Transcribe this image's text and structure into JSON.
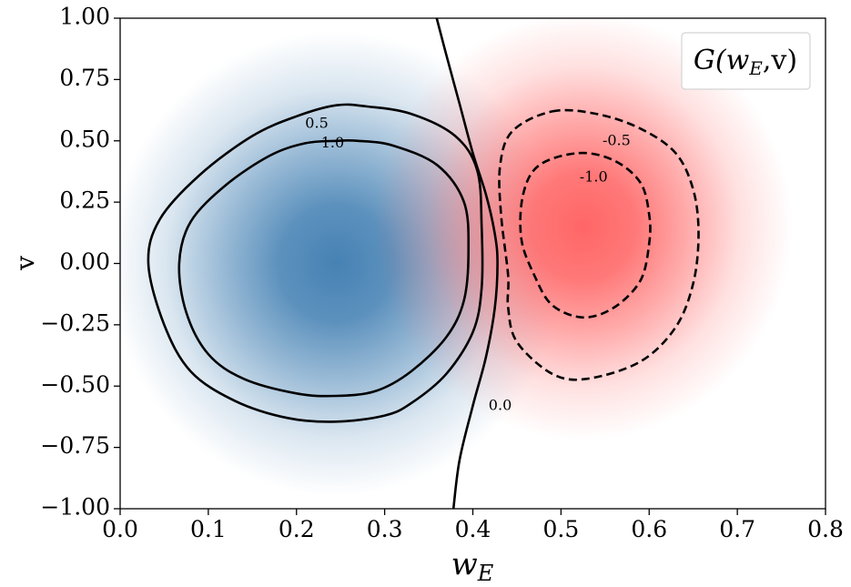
{
  "chart_data": {
    "type": "heatmap",
    "title": "",
    "xlabel": "w",
    "xlabel_sub": "E",
    "ylabel": "v",
    "xlim": [
      0.0,
      0.8
    ],
    "ylim": [
      -1.0,
      1.0
    ],
    "x_ticks": [
      "0.0",
      "0.1",
      "0.2",
      "0.3",
      "0.4",
      "0.5",
      "0.6",
      "0.7",
      "0.8"
    ],
    "y_ticks": [
      "1.00",
      "0.75",
      "0.50",
      "0.25",
      "0.00",
      "−0.25",
      "−0.50",
      "−0.75",
      "−1.00"
    ],
    "legend": {
      "text_main": "G(w",
      "text_sub": "E",
      "text_tail": ",v)",
      "placement": "top-right"
    },
    "colormap": {
      "positive": "#4682b4",
      "negative": "#ff6666",
      "zero": "#ffffff"
    },
    "blobs": [
      {
        "sign": 1,
        "center": [
          0.245,
          0.0
        ],
        "peak": 1.4
      },
      {
        "sign": -1,
        "center": [
          0.525,
          0.15
        ],
        "peak": -1.4
      }
    ],
    "contours": [
      {
        "level": 0.5,
        "label": "0.5",
        "style": "solid",
        "label_at": [
          0.223,
          0.57
        ],
        "points": [
          [
            0.032,
            0.0
          ],
          [
            0.045,
            0.18
          ],
          [
            0.09,
            0.36
          ],
          [
            0.15,
            0.52
          ],
          [
            0.2,
            0.6
          ],
          [
            0.245,
            0.645
          ],
          [
            0.28,
            0.64
          ],
          [
            0.33,
            0.61
          ],
          [
            0.38,
            0.52
          ],
          [
            0.405,
            0.38
          ],
          [
            0.41,
            0.15
          ],
          [
            0.41,
            -0.1
          ],
          [
            0.4,
            -0.28
          ],
          [
            0.37,
            -0.45
          ],
          [
            0.33,
            -0.57
          ],
          [
            0.3,
            -0.62
          ],
          [
            0.245,
            -0.645
          ],
          [
            0.19,
            -0.63
          ],
          [
            0.13,
            -0.56
          ],
          [
            0.08,
            -0.44
          ],
          [
            0.05,
            -0.25
          ],
          [
            0.032,
            0.0
          ]
        ]
      },
      {
        "level": 1.0,
        "label": "1.0",
        "style": "solid",
        "label_at": [
          0.241,
          0.49
        ],
        "points": [
          [
            0.067,
            0.0
          ],
          [
            0.08,
            0.17
          ],
          [
            0.12,
            0.32
          ],
          [
            0.17,
            0.44
          ],
          [
            0.21,
            0.49
          ],
          [
            0.245,
            0.5
          ],
          [
            0.27,
            0.5
          ],
          [
            0.31,
            0.48
          ],
          [
            0.36,
            0.4
          ],
          [
            0.39,
            0.25
          ],
          [
            0.395,
            0.05
          ],
          [
            0.39,
            -0.15
          ],
          [
            0.37,
            -0.3
          ],
          [
            0.33,
            -0.44
          ],
          [
            0.29,
            -0.52
          ],
          [
            0.245,
            -0.54
          ],
          [
            0.2,
            -0.53
          ],
          [
            0.14,
            -0.47
          ],
          [
            0.1,
            -0.37
          ],
          [
            0.075,
            -0.2
          ],
          [
            0.067,
            0.0
          ]
        ]
      },
      {
        "level": 0.0,
        "label": "0.0",
        "style": "solid",
        "label_at": [
          0.431,
          -0.58
        ],
        "points": [
          [
            0.359,
            1.0
          ],
          [
            0.37,
            0.85
          ],
          [
            0.385,
            0.65
          ],
          [
            0.4,
            0.45
          ],
          [
            0.415,
            0.28
          ],
          [
            0.425,
            0.12
          ],
          [
            0.428,
            0.0
          ],
          [
            0.425,
            -0.18
          ],
          [
            0.415,
            -0.38
          ],
          [
            0.4,
            -0.58
          ],
          [
            0.385,
            -0.8
          ],
          [
            0.378,
            -1.0
          ]
        ]
      },
      {
        "level": -0.5,
        "label": "-0.5",
        "style": "dashed",
        "label_at": [
          0.563,
          0.5
        ],
        "points": [
          [
            0.49,
            0.62
          ],
          [
            0.54,
            0.61
          ],
          [
            0.59,
            0.55
          ],
          [
            0.63,
            0.45
          ],
          [
            0.65,
            0.3
          ],
          [
            0.656,
            0.12
          ],
          [
            0.65,
            -0.08
          ],
          [
            0.63,
            -0.26
          ],
          [
            0.59,
            -0.4
          ],
          [
            0.53,
            -0.47
          ],
          [
            0.49,
            -0.45
          ],
          [
            0.45,
            -0.32
          ],
          [
            0.44,
            -0.18
          ],
          [
            0.44,
            -0.05
          ],
          [
            0.432,
            0.2
          ],
          [
            0.431,
            0.4
          ],
          [
            0.445,
            0.54
          ],
          [
            0.49,
            0.62
          ]
        ]
      },
      {
        "level": -1.0,
        "label": "-1.0",
        "style": "dashed",
        "label_at": [
          0.537,
          0.35
        ],
        "points": [
          [
            0.52,
            0.45
          ],
          [
            0.56,
            0.42
          ],
          [
            0.59,
            0.33
          ],
          [
            0.6,
            0.2
          ],
          [
            0.6,
            0.08
          ],
          [
            0.59,
            -0.07
          ],
          [
            0.56,
            -0.18
          ],
          [
            0.525,
            -0.22
          ],
          [
            0.49,
            -0.17
          ],
          [
            0.47,
            -0.05
          ],
          [
            0.455,
            0.1
          ],
          [
            0.457,
            0.28
          ],
          [
            0.475,
            0.4
          ],
          [
            0.52,
            0.45
          ]
        ]
      }
    ]
  }
}
